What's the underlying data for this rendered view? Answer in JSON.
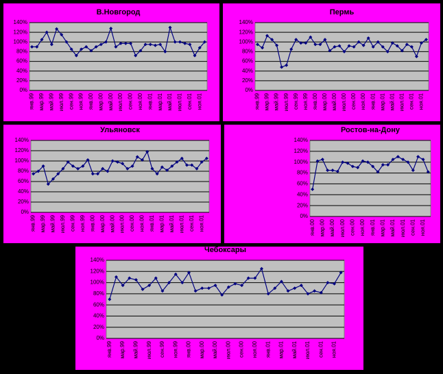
{
  "chart_data": [
    {
      "type": "line",
      "title": "В.Новгород",
      "color": "#000080",
      "grid": true,
      "categories": [
        "янв.99",
        null,
        "мар.99",
        null,
        "май.99",
        null,
        "июл.99",
        null,
        "сен.99",
        null,
        "ноя.99",
        null,
        "янв.00",
        null,
        "мар.00",
        null,
        "май.00",
        null,
        "июл.00",
        null,
        "сен.00",
        null,
        "ноя.00",
        null,
        "янв.01",
        null,
        "мар.01",
        null,
        "май.01",
        null,
        "июл.01",
        null,
        "сен.01",
        null,
        "ноя.01",
        null
      ],
      "values": [
        90,
        90,
        105,
        120,
        95,
        127,
        115,
        100,
        85,
        72,
        85,
        90,
        82,
        90,
        95,
        100,
        128,
        90,
        97,
        97,
        97,
        72,
        82,
        95,
        95,
        93,
        95,
        80,
        130,
        100,
        100,
        97,
        95,
        72,
        88,
        100
      ],
      "ylim": [
        0,
        140
      ],
      "yticks": [
        {
          "value": 0,
          "label": "0%"
        },
        {
          "value": 20,
          "label": "20%"
        },
        {
          "value": 40,
          "label": "40%"
        },
        {
          "value": 60,
          "label": "60%"
        },
        {
          "value": 80,
          "label": "80%"
        },
        {
          "value": 100,
          "label": "100%"
        },
        {
          "value": 120,
          "label": "120%"
        },
        {
          "value": 140,
          "label": "140%"
        }
      ]
    },
    {
      "type": "line",
      "title": "Пермь",
      "color": "#000080",
      "grid": true,
      "categories": [
        "янв.99",
        null,
        "мар.99",
        null,
        "май.99",
        null,
        "июл.99",
        null,
        "сен.99",
        null,
        "ноя.99",
        null,
        "янв.00",
        null,
        "мар.00",
        null,
        "май.00",
        null,
        "июл.00",
        null,
        "сен.00",
        null,
        "ноя.00",
        null,
        "янв.01",
        null,
        "мар.01",
        null,
        "май.01",
        null,
        "июл.01",
        null,
        "сен.01",
        null,
        "ноя.01",
        null
      ],
      "values": [
        95,
        88,
        113,
        105,
        93,
        48,
        52,
        85,
        105,
        98,
        98,
        110,
        95,
        95,
        105,
        82,
        90,
        92,
        80,
        92,
        90,
        100,
        93,
        108,
        90,
        100,
        90,
        80,
        98,
        92,
        82,
        95,
        90,
        70,
        98,
        105
      ],
      "ylim": [
        0,
        140
      ],
      "yticks": [
        {
          "value": 0,
          "label": "0%"
        },
        {
          "value": 20,
          "label": "20%"
        },
        {
          "value": 40,
          "label": "40%"
        },
        {
          "value": 60,
          "label": "60%"
        },
        {
          "value": 80,
          "label": "80%"
        },
        {
          "value": 100,
          "label": "100%"
        },
        {
          "value": 120,
          "label": "120%"
        },
        {
          "value": 140,
          "label": "140%"
        }
      ]
    },
    {
      "type": "line",
      "title": "Ульяновск",
      "color": "#000080",
      "grid": true,
      "categories": [
        "янв.99",
        null,
        "мар.99",
        null,
        "май.99",
        null,
        "июл.99",
        null,
        "сен.99",
        null,
        "ноя.99",
        null,
        "янв.00",
        null,
        "мар.00",
        null,
        "май.00",
        null,
        "июл.00",
        null,
        "сен.00",
        null,
        "ноя.00",
        null,
        "янв.01",
        null,
        "мар.01",
        null,
        "май.01",
        null,
        "июл.01",
        null,
        "сен.01",
        null,
        "ноя.01",
        null
      ],
      "values": [
        75,
        80,
        90,
        55,
        65,
        75,
        85,
        98,
        90,
        85,
        90,
        102,
        75,
        75,
        85,
        80,
        100,
        98,
        95,
        85,
        90,
        108,
        102,
        118,
        85,
        75,
        88,
        82,
        90,
        98,
        105,
        92,
        92,
        85,
        98,
        105
      ],
      "ylim": [
        0,
        140
      ],
      "yticks": [
        {
          "value": 0,
          "label": "0%"
        },
        {
          "value": 20,
          "label": "20%"
        },
        {
          "value": 40,
          "label": "40%"
        },
        {
          "value": 60,
          "label": "60%"
        },
        {
          "value": 80,
          "label": "80%"
        },
        {
          "value": 100,
          "label": "100%"
        },
        {
          "value": 120,
          "label": "120%"
        },
        {
          "value": 140,
          "label": "140%"
        }
      ]
    },
    {
      "type": "line",
      "title": "Ростов-на-Дону",
      "color": "#000080",
      "grid": true,
      "categories": [
        "янв.00",
        null,
        "мар.00",
        null,
        "май.00",
        null,
        "июл.00",
        null,
        "сен.00",
        null,
        "ноя.00",
        null,
        "янв.01",
        null,
        "мар.01",
        null,
        "май.01",
        null,
        "июл.01",
        null,
        "сен.01",
        null,
        "ноя.01",
        null
      ],
      "values": [
        50,
        102,
        105,
        85,
        85,
        83,
        100,
        98,
        92,
        90,
        102,
        100,
        92,
        82,
        95,
        95,
        105,
        110,
        105,
        100,
        85,
        110,
        105,
        82
      ],
      "ylim": [
        0,
        140
      ],
      "yticks": [
        {
          "value": 0,
          "label": "0%"
        },
        {
          "value": 20,
          "label": "20%"
        },
        {
          "value": 40,
          "label": "40%"
        },
        {
          "value": 60,
          "label": "60%"
        },
        {
          "value": 80,
          "label": "80%"
        },
        {
          "value": 100,
          "label": "100%"
        },
        {
          "value": 120,
          "label": "120%"
        },
        {
          "value": 140,
          "label": "140%"
        }
      ]
    },
    {
      "type": "line",
      "title": "Чебоксары",
      "color": "#000080",
      "grid": true,
      "categories": [
        "янв.99",
        null,
        "мар.99",
        null,
        "май.99",
        null,
        "июл.99",
        null,
        "сен.99",
        null,
        "ноя.99",
        null,
        "янв.00",
        null,
        "мар.00",
        null,
        "май.00",
        null,
        "июл.00",
        null,
        "сен.00",
        null,
        "ноя.00",
        null,
        "янв.01",
        null,
        "мар.01",
        null,
        "май.01",
        null,
        "июл.01",
        null,
        "сен.01",
        null,
        "ноя.01",
        null
      ],
      "values": [
        70,
        110,
        95,
        108,
        105,
        88,
        95,
        108,
        85,
        100,
        115,
        100,
        118,
        85,
        90,
        90,
        95,
        78,
        92,
        98,
        95,
        108,
        108,
        125,
        80,
        90,
        102,
        85,
        90,
        95,
        80,
        85,
        82,
        100,
        98,
        118
      ],
      "ylim": [
        0,
        140
      ],
      "yticks": [
        {
          "value": 0,
          "label": "0%"
        },
        {
          "value": 20,
          "label": "20%"
        },
        {
          "value": 40,
          "label": "40%"
        },
        {
          "value": 60,
          "label": "60%"
        },
        {
          "value": 80,
          "label": "80%"
        },
        {
          "value": 100,
          "label": "100%"
        },
        {
          "value": 120,
          "label": "120%"
        },
        {
          "value": 140,
          "label": "140%"
        }
      ]
    }
  ]
}
